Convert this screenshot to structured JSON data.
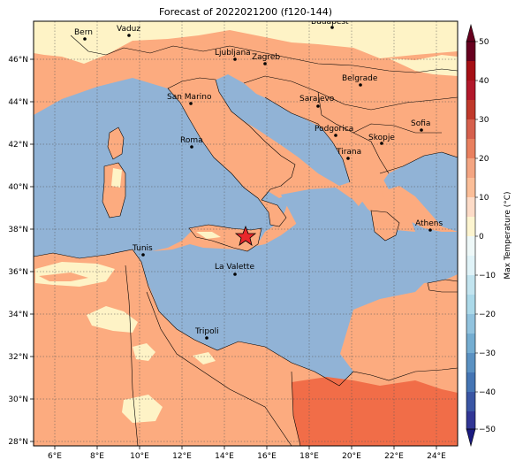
{
  "title": "Forecast of 2022021200 (f120-144)",
  "x_ticks": [
    "6°E",
    "8°E",
    "10°E",
    "12°E",
    "14°E",
    "16°E",
    "18°E",
    "20°E",
    "22°E",
    "24°E"
  ],
  "y_ticks": [
    "28°N",
    "30°N",
    "32°N",
    "34°N",
    "36°N",
    "38°N",
    "40°N",
    "42°N",
    "44°N",
    "46°N"
  ],
  "cities": [
    {
      "name": "Bern"
    },
    {
      "name": "Vaduz"
    },
    {
      "name": "Budapest"
    },
    {
      "name": "Ljubljana"
    },
    {
      "name": "Zagreb"
    },
    {
      "name": "Belgrade"
    },
    {
      "name": "San Marino"
    },
    {
      "name": "Sarajevo"
    },
    {
      "name": "Sofia"
    },
    {
      "name": "Podgorica"
    },
    {
      "name": "Skopje"
    },
    {
      "name": "Roma"
    },
    {
      "name": "Tirana"
    },
    {
      "name": "Athens"
    },
    {
      "name": "Tunis"
    },
    {
      "name": "La Valette"
    },
    {
      "name": "Tripoli"
    }
  ],
  "colorbar": {
    "label": "Max Temperature (°C)",
    "ticks": [
      "50",
      "40",
      "30",
      "20",
      "10",
      "0",
      "−10",
      "−20",
      "−30",
      "−40",
      "−50"
    ],
    "colors": [
      "#67001f",
      "#b2182b",
      "#d6604d",
      "#f4a582",
      "#fddbc7",
      "#fdf5d0",
      "#e0f3f8",
      "#abd9e9",
      "#74add1",
      "#4575b4",
      "#313695"
    ]
  },
  "map_colors": {
    "sea": "#91b3d6",
    "land_warm": "#fcab7f",
    "land_mild": "#fef3c6",
    "land_hot": "#f16d48",
    "marker": "#e8272b"
  }
}
